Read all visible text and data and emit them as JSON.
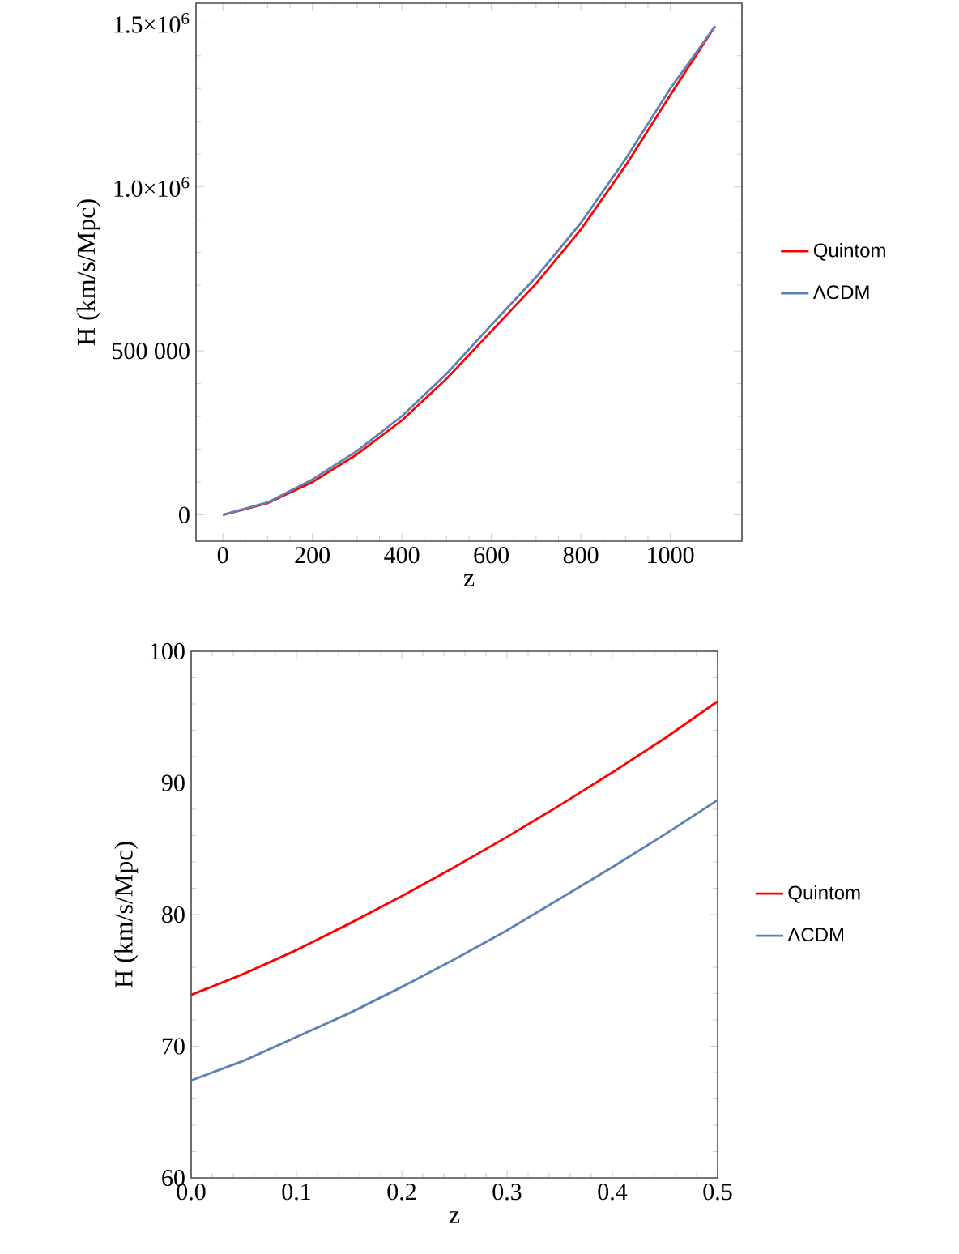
{
  "chart_data": [
    {
      "type": "line",
      "xlabel": "z",
      "ylabel": "H (km/s/Mpc)",
      "x": [
        0,
        100,
        200,
        300,
        400,
        500,
        600,
        700,
        800,
        900,
        1000,
        1100
      ],
      "series": [
        {
          "name": "Quintom",
          "color": "#ff0000",
          "values": [
            0,
            36000,
            100000,
            185000,
            288000,
            415000,
            560000,
            705000,
            870000,
            1065000,
            1280000,
            1490000
          ]
        },
        {
          "name": "ΛCDM",
          "color": "#5e81b5",
          "values": [
            0,
            38000,
            108000,
            195000,
            301000,
            430000,
            579000,
            725000,
            890000,
            1085000,
            1300000,
            1490000
          ]
        }
      ],
      "xlim": [
        -60,
        1160
      ],
      "ylim": [
        -80000,
        1560000
      ],
      "xticks": [
        0,
        200,
        400,
        600,
        800,
        1000
      ],
      "yticks": [
        0,
        {
          "value": 500000,
          "label": "500 000"
        },
        {
          "value": 1000000,
          "label": "1.0×10$^{6}$"
        },
        {
          "value": 1500000,
          "label": "1.5×10$^{6}$"
        }
      ],
      "legend": "right"
    },
    {
      "type": "line",
      "xlabel": "z",
      "ylabel": "H (km/s/Mpc)",
      "x": [
        0,
        0.05,
        0.1,
        0.15,
        0.2,
        0.25,
        0.3,
        0.35,
        0.4,
        0.45,
        0.5
      ],
      "series": [
        {
          "name": "Quintom",
          "color": "#ff0000",
          "values": [
            73.9,
            75.5,
            77.3,
            79.3,
            81.4,
            83.6,
            85.9,
            88.3,
            90.8,
            93.4,
            96.2
          ]
        },
        {
          "name": "ΛCDM",
          "color": "#5e81b5",
          "values": [
            67.4,
            68.9,
            70.7,
            72.5,
            74.5,
            76.6,
            78.8,
            81.2,
            83.6,
            86.1,
            88.7
          ]
        }
      ],
      "xlim": [
        0,
        0.5
      ],
      "ylim": [
        60,
        100
      ],
      "xticks": [
        {
          "value": 0,
          "label": "0.0"
        },
        0.1,
        0.2,
        0.3,
        0.4,
        0.5
      ],
      "yticks": [
        60,
        70,
        80,
        90,
        100
      ],
      "legend": "right"
    }
  ]
}
